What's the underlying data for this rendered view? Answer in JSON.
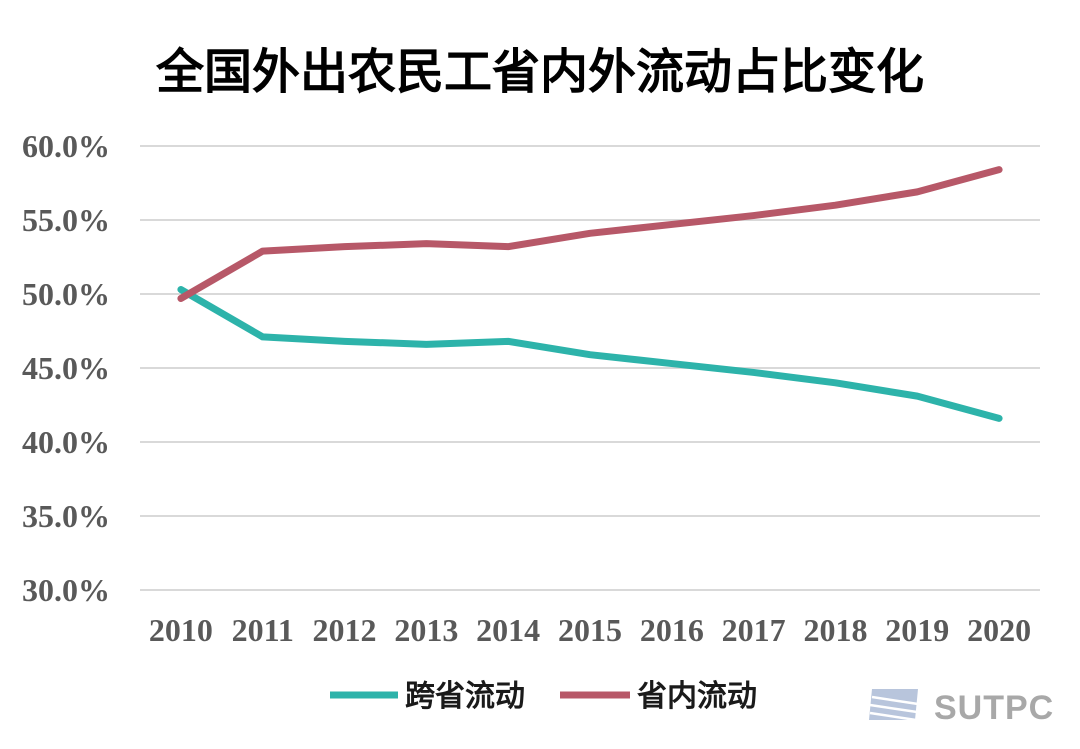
{
  "chart_data": {
    "type": "line",
    "title": "全国外出农民工省内外流动占比变化",
    "categories": [
      "2010",
      "2011",
      "2012",
      "2013",
      "2014",
      "2015",
      "2016",
      "2017",
      "2018",
      "2019",
      "2020"
    ],
    "series": [
      {
        "name": "跨省流动",
        "color": "#2DB3AA",
        "values": [
          50.3,
          47.1,
          46.8,
          46.6,
          46.8,
          45.9,
          45.3,
          44.7,
          44.0,
          43.1,
          41.6
        ]
      },
      {
        "name": "省内流动",
        "color": "#B75868",
        "values": [
          49.7,
          52.9,
          53.2,
          53.4,
          53.2,
          54.1,
          54.7,
          55.3,
          56.0,
          56.9,
          58.4
        ]
      }
    ],
    "ylim": [
      30,
      60
    ],
    "y_ticks": [
      {
        "value": 60,
        "label": "60.0%"
      },
      {
        "value": 55,
        "label": "55.0%"
      },
      {
        "value": 50,
        "label": "50.0%"
      },
      {
        "value": 45,
        "label": "45.0%"
      },
      {
        "value": 40,
        "label": "40.0%"
      },
      {
        "value": 35,
        "label": "35.0%"
      },
      {
        "value": 30,
        "label": "30.0%"
      }
    ],
    "grid": true,
    "legend_position": "bottom"
  },
  "colors": {
    "gridline": "#D9D9D9",
    "tick_label": "#595959",
    "logo_icon": "#B8C5DC",
    "logo_text": "#A8A8A8"
  },
  "logo": {
    "icon": "sutpc-logo-icon",
    "text": "SUTPC"
  }
}
